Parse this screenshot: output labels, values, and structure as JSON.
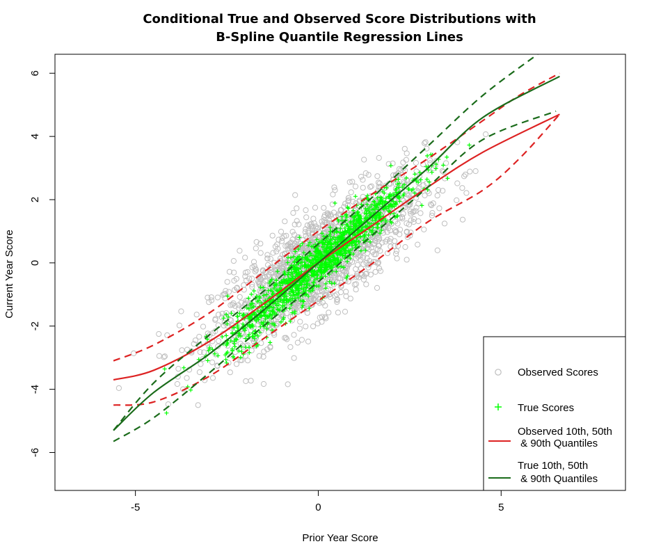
{
  "chart_data": {
    "type": "scatter",
    "title": [
      "Conditional True and Observed Score Distributions with",
      "B-Spline Quantile Regression Lines"
    ],
    "xlabel": "Prior Year Score",
    "ylabel": "Current Year Score",
    "xlim": [
      -7.2,
      8.4
    ],
    "ylim": [
      -7.2,
      6.6
    ],
    "x_ticks": [
      -5,
      0,
      5
    ],
    "y_ticks": [
      6,
      4,
      2,
      0,
      -2,
      -4,
      -6
    ],
    "grid": false,
    "legend_placement": "bottom-right",
    "legend": [
      {
        "label": "Observed Scores",
        "marker": "circle",
        "color": "#bebebe"
      },
      {
        "label": "True Scores",
        "marker": "plus",
        "color": "#00ff00"
      },
      {
        "label": [
          "Observed 10th, 50th",
          " & 90th Quantiles"
        ],
        "marker": "line",
        "color": "#dd2222"
      },
      {
        "label": [
          "True 10th, 50th",
          " & 90th Quantiles"
        ],
        "marker": "line",
        "color": "#1a6b1a"
      }
    ],
    "series": [
      {
        "name": "Observed Scores",
        "kind": "scatter",
        "color": "#bebebe",
        "approx_slope": 0.75,
        "approx_spread_sd": 0.8,
        "x_range": [
          -5.6,
          6.6
        ]
      },
      {
        "name": "True Scores",
        "kind": "scatter",
        "color": "#00ff00",
        "approx_slope": 1.0,
        "approx_spread_sd": 0.4,
        "x_range": [
          -4.2,
          4.6
        ]
      }
    ],
    "quantile_lines": {
      "observed": {
        "color": "#dd2222",
        "q50": {
          "x": [
            -5.6,
            -4.5,
            -3.0,
            -1.5,
            0,
            1.5,
            3.0,
            4.5,
            6.6
          ],
          "y": [
            -3.7,
            -3.4,
            -2.5,
            -1.3,
            0,
            1.2,
            2.4,
            3.5,
            4.7
          ]
        },
        "q10": {
          "x": [
            -5.6,
            -4.5,
            -3.0,
            -1.5,
            0,
            1.5,
            3.0,
            4.5,
            5.5,
            6.6
          ],
          "y": [
            -4.5,
            -4.4,
            -3.6,
            -2.4,
            -1.2,
            0.0,
            1.3,
            2.3,
            3.3,
            4.7
          ]
        },
        "q90": {
          "x": [
            -5.6,
            -4.5,
            -3.0,
            -1.5,
            0,
            1.5,
            3.0,
            4.5,
            5.5,
            6.6
          ],
          "y": [
            -3.1,
            -2.6,
            -1.6,
            -0.3,
            1.0,
            2.2,
            3.3,
            4.5,
            5.3,
            6.0
          ]
        }
      },
      "true": {
        "color": "#1a6b1a",
        "q50": {
          "x": [
            -5.6,
            -4.5,
            -3.0,
            -1.5,
            0,
            1.5,
            3.0,
            4.5,
            6.6
          ],
          "y": [
            -5.3,
            -4.1,
            -2.9,
            -1.5,
            0,
            1.5,
            3.0,
            4.6,
            5.9
          ]
        },
        "q10": {
          "x": [
            -5.6,
            -4.5,
            -3.0,
            -1.5,
            0,
            1.5,
            3.0,
            4.5,
            6.5
          ],
          "y": [
            -5.65,
            -4.9,
            -3.5,
            -2.0,
            -0.6,
            0.9,
            2.4,
            3.9,
            4.8
          ]
        },
        "q90": {
          "x": [
            -5.6,
            -4.5,
            -3.0,
            -1.5,
            0,
            1.5,
            3.0,
            4.5,
            6.0
          ],
          "y": [
            -5.3,
            -3.8,
            -2.3,
            -0.9,
            0.6,
            2.1,
            3.7,
            5.3,
            6.6
          ]
        }
      }
    }
  }
}
